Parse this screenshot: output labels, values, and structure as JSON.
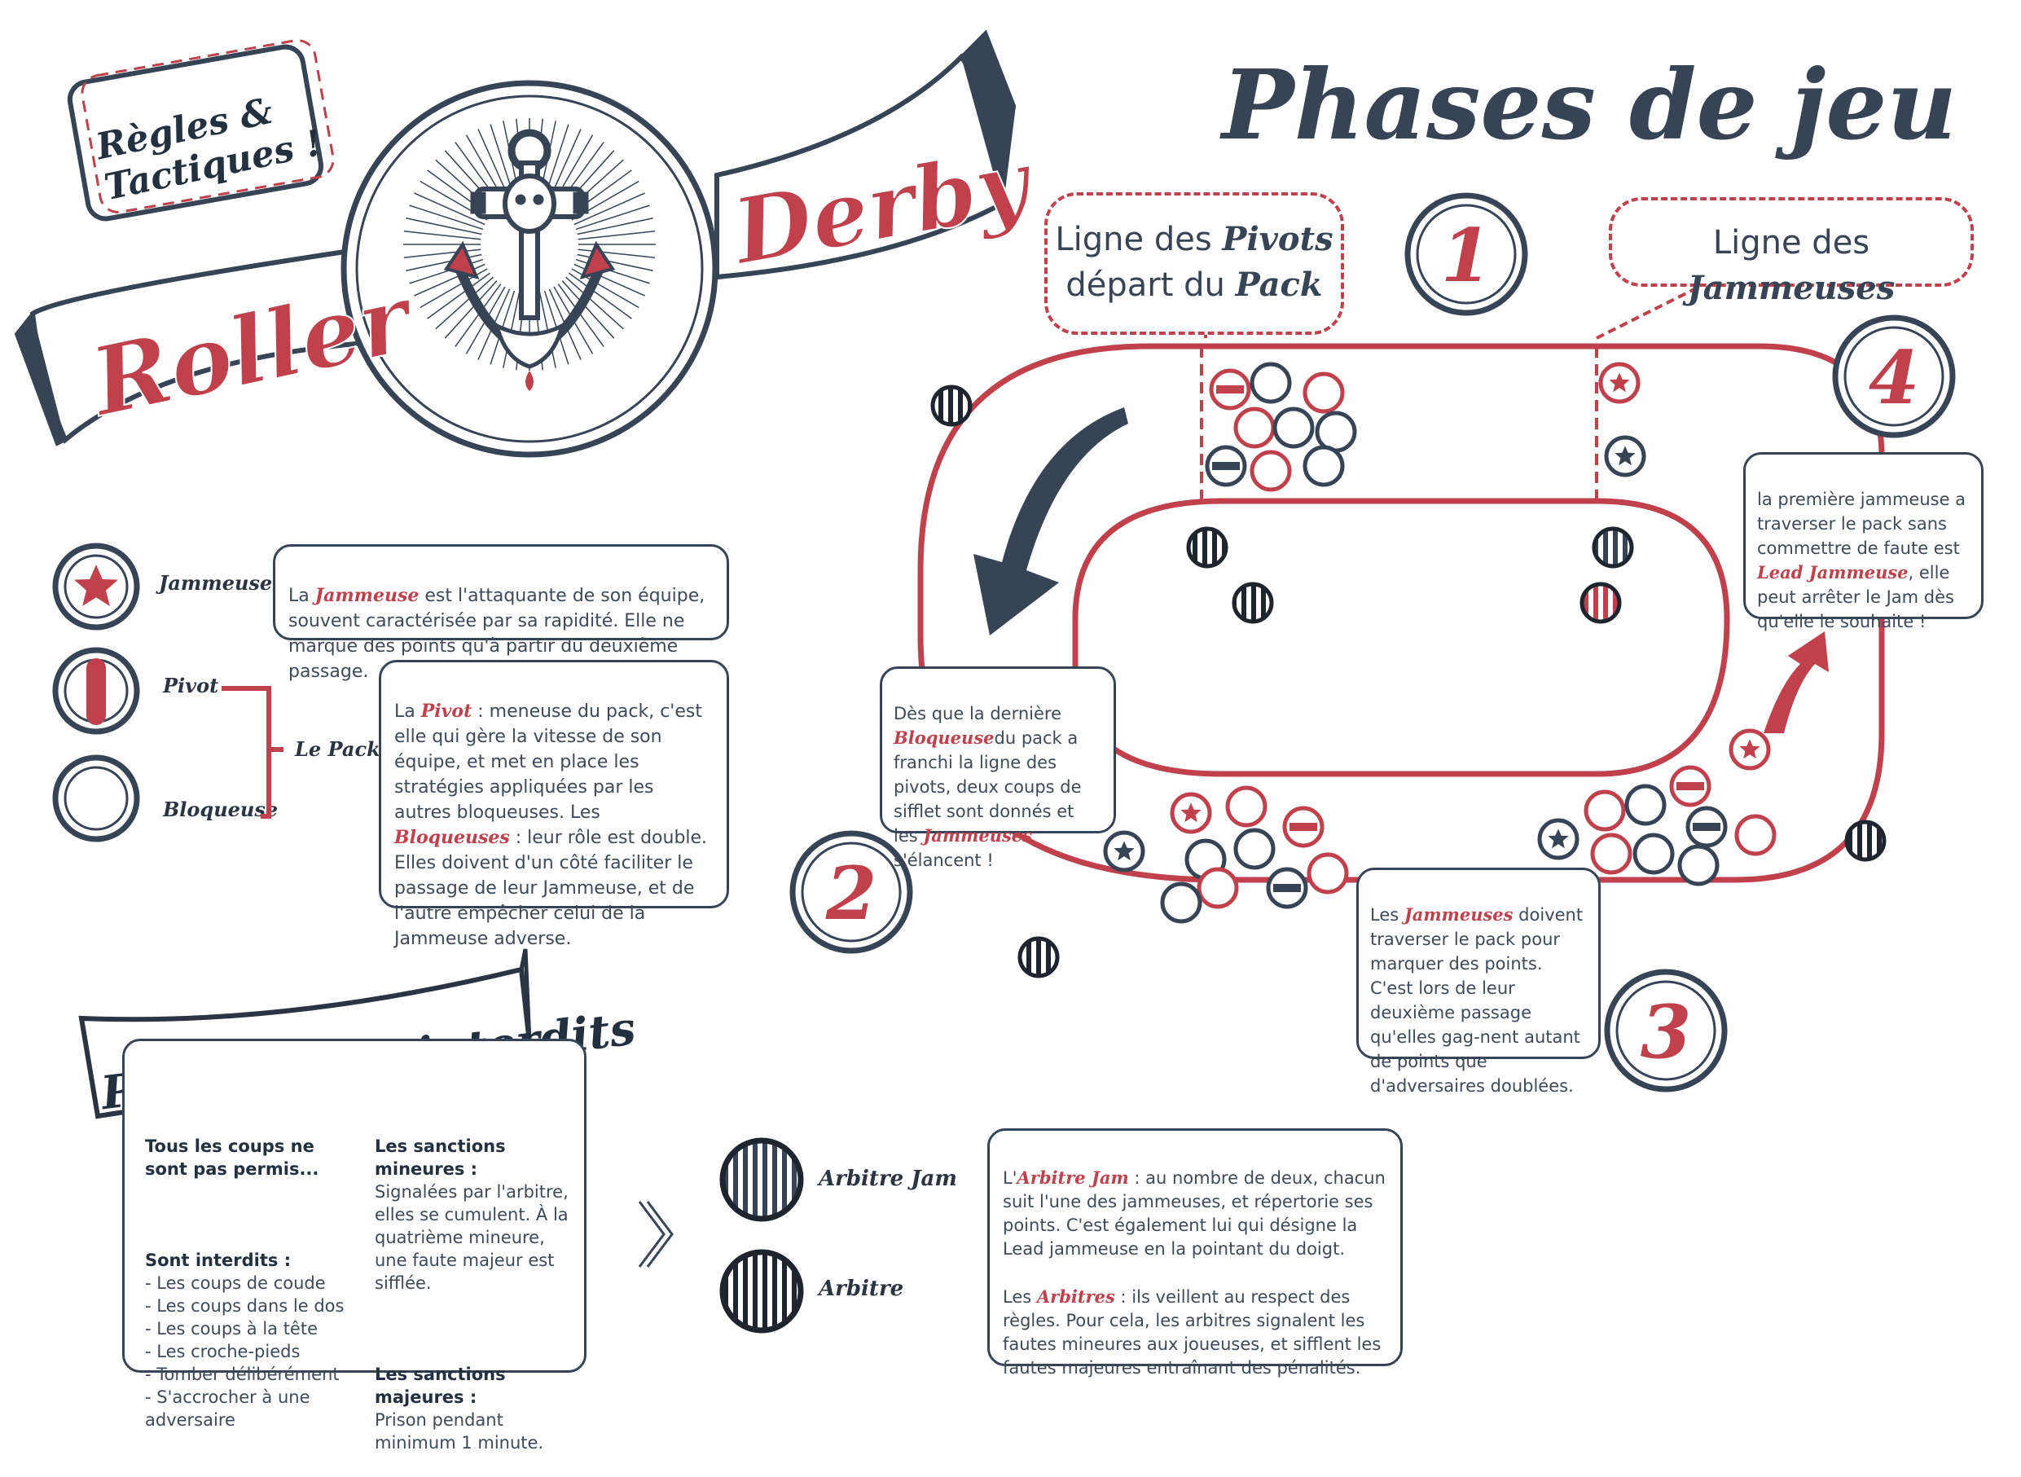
{
  "header": {
    "badge_line1": "Règles &",
    "badge_line2": "Tactiques !",
    "logo_left": "Roller",
    "logo_right": "Derby",
    "title": "Phases de jeu"
  },
  "legend": {
    "jammeuse_label": "Jammeuse",
    "pivot_label": "Pivot",
    "bloqueuse_label": "Bloqueuse",
    "pack_label": "Le Pack",
    "jammeuse_desc": {
      "pre": "La ",
      "kw": "Jammeuse",
      "post": " est l'attaquante de son équipe, souvent caractérisée par sa rapidité. Elle ne marque des points qu'à partir du deuxième passage."
    },
    "pivot_desc": {
      "pre": "La ",
      "kw1": "Pivot",
      "mid": " : meneuse du pack, c'est elle qui gère la vitesse de son équipe, et met en place les stratégies appliquées par les autres bloqueuses. Les ",
      "kw2": "Bloqueuses",
      "post": " : leur rôle est double. Elles doivent d'un côté faciliter le passage de leur Jammeuse, et de l'autre empêcher celui de la Jammeuse adverse."
    }
  },
  "track": {
    "pivot_line": {
      "pre1": "Ligne des ",
      "kw1": "Pivots",
      "pre2": "départ du ",
      "kw2": "Pack"
    },
    "jammer_line": {
      "pre": "Ligne des ",
      "kw": "Jammeuses"
    },
    "step1": "1",
    "step2": "2",
    "step3": "3",
    "step4": "4",
    "note2": {
      "pre": "Dès que la dernière ",
      "kw1": "Bloqueuse",
      "mid": "du pack a franchi la ligne des pivots, deux coups de sifflet sont donnés et les ",
      "kw2": "Jammeuses",
      "post": " s'élancent !"
    },
    "note3": {
      "pre": "Les ",
      "kw": "Jammeuses",
      "post": " doivent traverser le pack pour marquer des points. C'est lors de leur deuxième passage qu'elles gag-nent autant de points que d'adversaires doublées."
    },
    "note4": {
      "pre": "la première jammeuse a traverser le pack sans commettre de faute est ",
      "kw": "Lead Jammeuse",
      "post": ", elle peut arrêter le Jam dès qu'elle le souhaite !"
    }
  },
  "penalties": {
    "title": "Pénalités et interdits",
    "intro": "Tous les coups ne sont pas permis...",
    "forbidden_title": "Sont interdits :",
    "forbidden": [
      "- Les coups de coude",
      "- Les coups dans le dos",
      "- Les coups à la tête",
      "- Les croche-pieds",
      "- Tomber délibérément",
      "- S'accrocher à une adversaire"
    ],
    "minor_title": "Les sanctions mineures :",
    "minor_text": "Signalées par l'arbitre, elles se cumulent. À la quatrième mineure, une faute majeur est sifflée.",
    "major_title": "Les sanctions majeures :",
    "major_text": "Prison pendant minimum 1 minute."
  },
  "referees": {
    "jam_label": "Arbitre Jam",
    "ref_label": "Arbitre",
    "desc": {
      "pre1": "L'",
      "kw1": "Arbitre Jam",
      "post1": " : au nombre de deux, chacun suit l'une des jammeuses, et répertorie ses points. C'est également lui qui désigne la Lead jammeuse en la pointant du doigt.",
      "pre2": "Les ",
      "kw2": "Arbitres",
      "post2": " : ils veillent au respect des règles. Pour cela, les arbitres signalent les fautes mineures aux joueuses, et sifflent les fautes majeures entraînant des pénalités."
    }
  },
  "colors": {
    "navy": "#364456",
    "red": "#c0404b"
  }
}
